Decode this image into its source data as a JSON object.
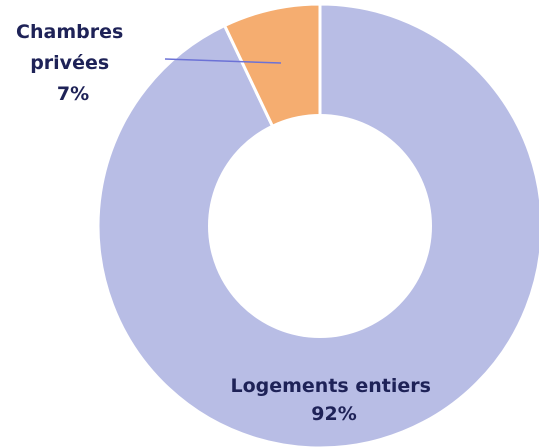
{
  "chart_data": {
    "type": "pie",
    "donut": true,
    "title": "",
    "slices": [
      {
        "label": "Logements entiers",
        "value_label": "92%",
        "value": 92,
        "color": "#b8bde5"
      },
      {
        "label": "Chambres privées",
        "value_label": "7%",
        "value": 7,
        "color": "#f5ad70"
      }
    ],
    "labels": {
      "entire": {
        "lines": [
          "Logements entiers",
          "92%"
        ]
      },
      "private": {
        "lines": [
          "Chambres",
          "privées",
          "7%"
        ]
      }
    },
    "leader_color": "#6c72d6",
    "hole_color": "#ffffff"
  }
}
